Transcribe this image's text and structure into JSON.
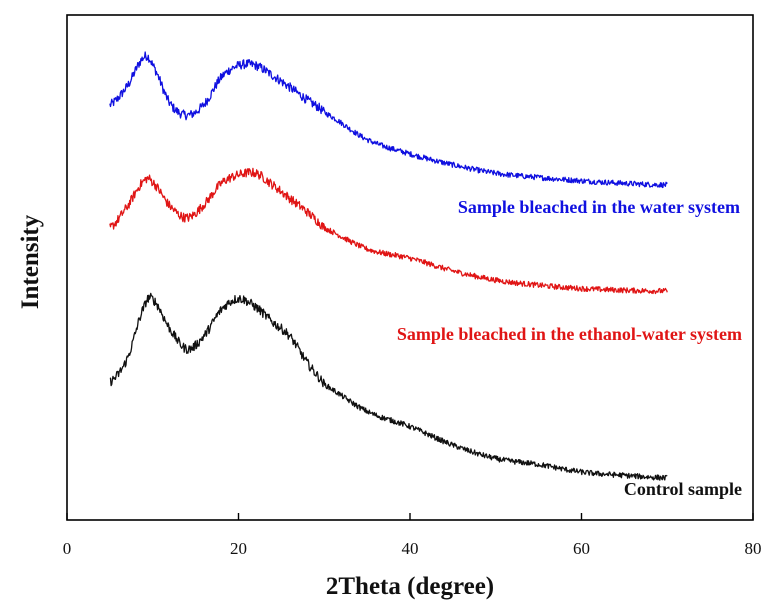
{
  "chart_data": {
    "type": "line",
    "title": "",
    "xlabel": "2Theta (degree)",
    "ylabel": "Intensity",
    "xlim": [
      0,
      80
    ],
    "xticks": [
      0,
      20,
      40,
      60,
      80
    ],
    "y_tick_labels": false,
    "y_scale": "arbitrary units, stacked with vertical offset",
    "grid": false,
    "legend": "none; each curve labelled by text below its right end",
    "x": [
      5,
      7,
      9,
      10,
      12,
      14,
      16,
      18,
      20,
      22,
      24,
      26,
      28,
      30,
      35,
      40,
      45,
      50,
      55,
      60,
      65,
      70
    ],
    "series": [
      {
        "name": "Sample bleached in the water system",
        "color": "#1010e0",
        "values": [
          29.3,
          31.5,
          35.0,
          34.0,
          29.5,
          28.1,
          29.4,
          32.6,
          34.0,
          34.0,
          32.8,
          31.4,
          29.9,
          28.4,
          25.2,
          23.5,
          22.2,
          21.2,
          20.7,
          20.3,
          20.0,
          19.8
        ]
      },
      {
        "name": "Sample bleached in the ethanol-water system",
        "color": "#e01515",
        "values": [
          14.7,
          17.2,
          20.3,
          20.1,
          17.3,
          15.9,
          17.5,
          20.0,
          21.0,
          21.2,
          19.8,
          18.2,
          16.6,
          14.7,
          12.2,
          11.1,
          9.6,
          8.5,
          7.9,
          7.5,
          7.3,
          7.2
        ]
      },
      {
        "name": "Control sample",
        "color": "#111111",
        "values": [
          -3.6,
          -0.9,
          5.3,
          6.2,
          2.7,
          0.3,
          1.9,
          5.0,
          6.3,
          5.3,
          3.5,
          1.8,
          -1.3,
          -3.9,
          -7.1,
          -8.9,
          -11.1,
          -12.7,
          -13.4,
          -14.3,
          -14.7,
          -15.0
        ]
      }
    ]
  }
}
